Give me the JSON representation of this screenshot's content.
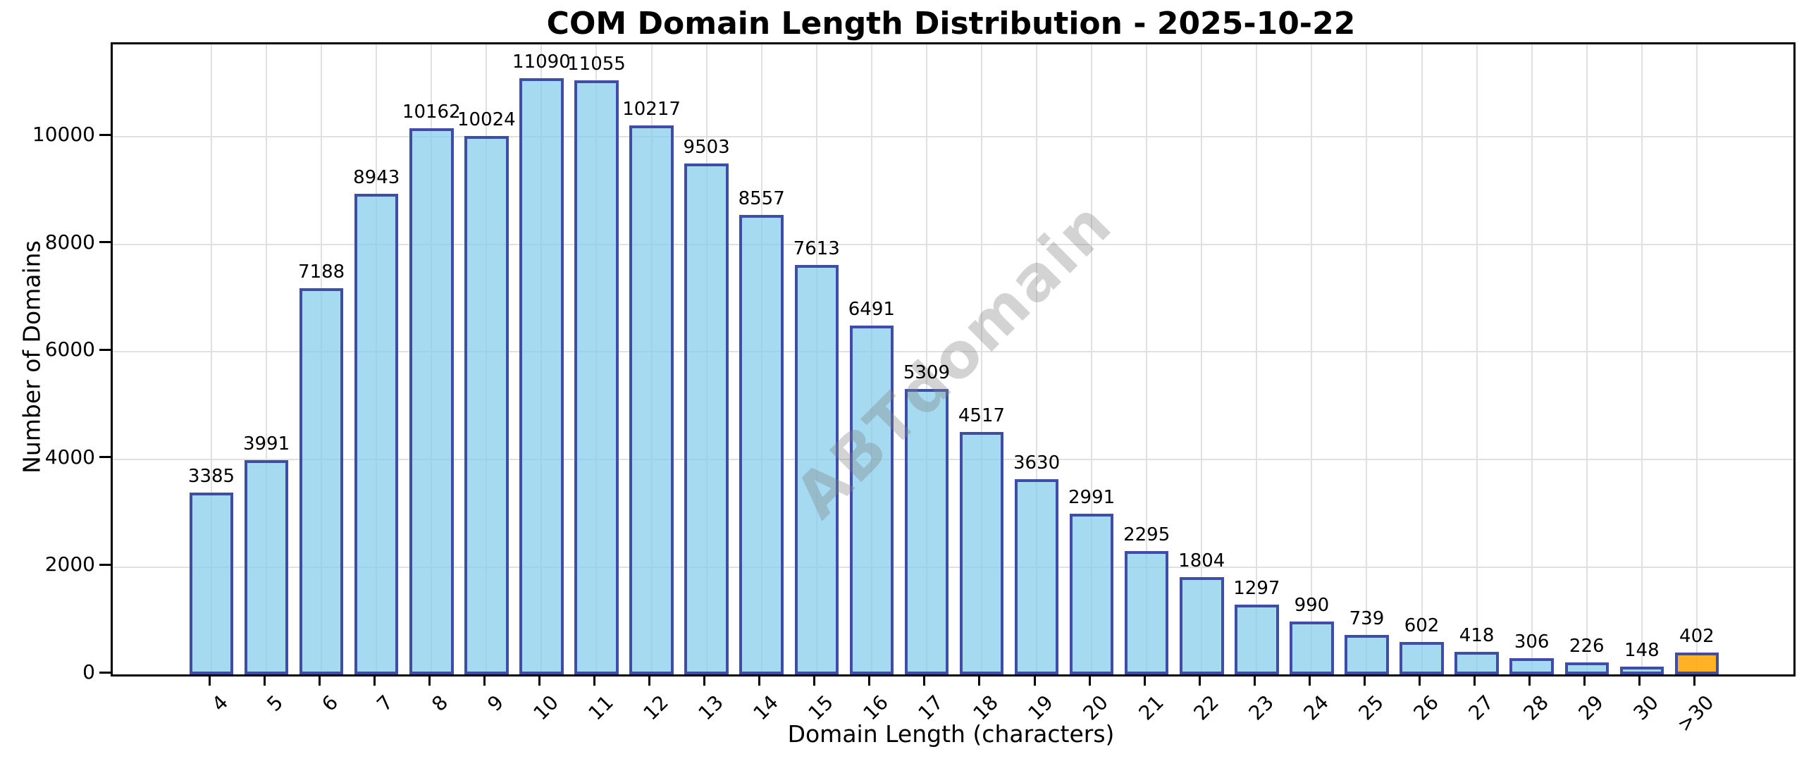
{
  "chart_data": {
    "type": "bar",
    "title": "COM Domain Length Distribution - 2025-10-22",
    "xlabel": "Domain Length (characters)",
    "ylabel": "Number of Domains",
    "categories": [
      "4",
      "5",
      "6",
      "7",
      "8",
      "9",
      "10",
      "11",
      "12",
      "13",
      "14",
      "15",
      "16",
      "17",
      "18",
      "19",
      "20",
      "21",
      "22",
      "23",
      "24",
      "25",
      "26",
      "27",
      "28",
      "29",
      "30",
      ">30"
    ],
    "values": [
      3385,
      3991,
      7188,
      8943,
      10162,
      10024,
      11090,
      11055,
      10217,
      9503,
      8557,
      7613,
      6491,
      5309,
      4517,
      3630,
      2991,
      2295,
      1804,
      1297,
      990,
      739,
      602,
      418,
      306,
      226,
      148,
      402
    ],
    "value_labels_shown": true,
    "yticks": [
      0,
      2000,
      4000,
      6000,
      8000,
      10000
    ],
    "ylim": [
      0,
      11724
    ],
    "grid": true,
    "legend_position": "none",
    "watermark": "ABTdomain",
    "colors": {
      "bar_fill": "rgba(135,206,235,0.75)",
      "bar_edge": "#3e4da8",
      "highlight_fill": "rgba(255,165,0,0.85)",
      "grid": "#e0e0e0",
      "spine": "#000000",
      "text": "#000000",
      "watermark": "rgba(128,128,128,0.35)"
    },
    "highlight_index": 27
  }
}
